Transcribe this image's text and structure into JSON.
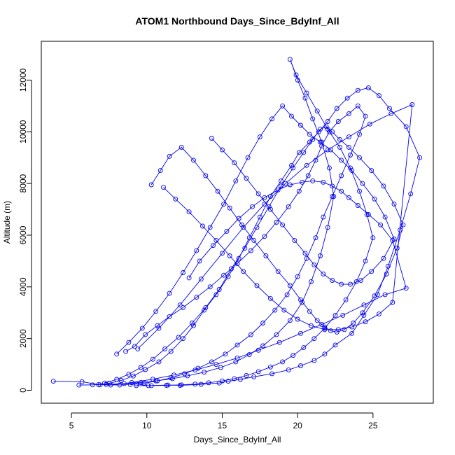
{
  "chart_data": {
    "type": "line",
    "title": "ATOM1 Northbound Days_Since_BdyInf_All",
    "xlabel": "Days_Since_BdyInf_All",
    "ylabel": "Altitude (m)",
    "xlim": [
      3.0,
      29.0
    ],
    "ylim": [
      -500,
      13500
    ],
    "x_ticks": [
      5,
      10,
      15,
      20,
      25
    ],
    "y_ticks": [
      0,
      2000,
      4000,
      6000,
      8000,
      10000,
      12000
    ],
    "grid": false,
    "legend": "none",
    "colors": {
      "series": "#0000ee",
      "axis": "#000000",
      "background": "#ffffff"
    },
    "marker": "open-circle",
    "series": [
      {
        "x": [
          3.8,
          5.7,
          6.8,
          8.2,
          9.3,
          10.1,
          11.4,
          12.2,
          13.6,
          14.8,
          15.4,
          16.2,
          17.1,
          18.3,
          19.4,
          20.2,
          21.1,
          21.8,
          22.5,
          23.6,
          24.4,
          25.3,
          26.0,
          26.8,
          27.5,
          28.1,
          27.2,
          26.1,
          25.4,
          24.7,
          24.0,
          23.3,
          22.6,
          22.0,
          21.4,
          20.8,
          20.1,
          19.6,
          18.9,
          18.2,
          17.5,
          16.8,
          16.1,
          15.4,
          14.6,
          13.8,
          13.1,
          12.4,
          11.6,
          10.8,
          9.9,
          9.1,
          8.3,
          7.5,
          6.9
        ],
        "y": [
          350,
          330,
          220,
          200,
          250,
          180,
          200,
          190,
          230,
          280,
          350,
          420,
          520,
          640,
          790,
          950,
          1150,
          1400,
          1750,
          2200,
          2900,
          3700,
          4800,
          6200,
          7600,
          9000,
          10200,
          10900,
          11400,
          11700,
          11600,
          11300,
          10900,
          10400,
          10000,
          9600,
          9200,
          8700,
          8100,
          7500,
          6700,
          5900,
          5100,
          4400,
          3700,
          3100,
          2500,
          2000,
          1500,
          1100,
          800,
          550,
          380,
          270,
          210
        ]
      },
      {
        "x": [
          5.5,
          6.4,
          7.3,
          8.5,
          9.6,
          10.6,
          11.7,
          12.7,
          13.8,
          14.9,
          15.9,
          16.8,
          17.7,
          18.6,
          19.5,
          20.3,
          20.9,
          21.5,
          22.0,
          22.4,
          22.1,
          21.6,
          21.0,
          20.5,
          20.0,
          19.5,
          19.9,
          20.6,
          21.3,
          22.0,
          22.8,
          23.5,
          24.1,
          24.6,
          25.0,
          24.5,
          23.9,
          23.2,
          22.5,
          21.8,
          21.1,
          20.4,
          19.7,
          19.0,
          18.2,
          17.4,
          16.6,
          15.8,
          15.0,
          14.1,
          13.2,
          12.3,
          11.3,
          10.3,
          9.3
        ],
        "y": [
          200,
          210,
          230,
          260,
          300,
          360,
          450,
          560,
          700,
          880,
          1100,
          1380,
          1720,
          2150,
          2700,
          3400,
          4200,
          5200,
          6300,
          7500,
          8600,
          9600,
          10500,
          11300,
          12000,
          12800,
          12200,
          11500,
          10800,
          10100,
          9400,
          8600,
          7700,
          6800,
          5900,
          5000,
          4200,
          3500,
          2900,
          2400,
          2000,
          1650,
          1350,
          1100,
          900,
          720,
          570,
          450,
          360,
          290,
          240,
          210,
          190,
          180,
          180
        ]
      },
      {
        "x": [
          10.3,
          10.9,
          11.5,
          12.3,
          13.1,
          13.9,
          14.7,
          15.5,
          16.3,
          17.1,
          17.9,
          18.7,
          19.5,
          20.2,
          20.8,
          21.3,
          21.8,
          22.2,
          22.6,
          23.1,
          23.7,
          24.3,
          25.1,
          25.9,
          26.6,
          27.0,
          26.4,
          25.7,
          24.9,
          24.1,
          23.4,
          22.8,
          22.3,
          21.9,
          21.5,
          21.0,
          20.4,
          19.7,
          18.9,
          18.1,
          17.3,
          16.5,
          15.6,
          14.8,
          13.9,
          13.0,
          12.1,
          11.2,
          10.4,
          9.6,
          8.8,
          8.0,
          7.2
        ],
        "y": [
          7950,
          8500,
          9050,
          9400,
          8900,
          8300,
          7700,
          7050,
          6400,
          5800,
          5200,
          4600,
          4050,
          3500,
          3050,
          2700,
          2450,
          2300,
          2250,
          2350,
          2600,
          3000,
          3650,
          4500,
          5500,
          6400,
          7200,
          7900,
          8500,
          9000,
          9400,
          9700,
          10000,
          10200,
          10100,
          9700,
          9200,
          8600,
          7900,
          7100,
          6300,
          5500,
          4700,
          3900,
          3200,
          2600,
          2050,
          1600,
          1200,
          880,
          620,
          420,
          280
        ]
      },
      {
        "x": [
          8.6,
          9.2,
          9.9,
          10.7,
          11.5,
          12.4,
          13.3,
          14.2,
          15.1,
          16.0,
          16.9,
          17.8,
          18.6,
          19.4,
          20.1,
          20.7,
          21.2,
          21.6,
          22.1,
          22.7,
          23.4,
          24.0,
          24.5,
          24.1,
          23.5,
          22.9,
          22.3,
          21.7,
          21.2,
          20.6,
          20.0,
          19.3,
          18.5,
          17.7,
          16.9,
          16.0,
          15.2,
          14.3,
          13.4,
          12.5,
          11.6,
          10.7,
          9.8,
          8.9
        ],
        "y": [
          1500,
          1700,
          2150,
          2500,
          2850,
          3200,
          3600,
          4000,
          4450,
          4900,
          5400,
          5950,
          6500,
          7100,
          7700,
          8300,
          8900,
          9450,
          10000,
          10400,
          10700,
          11000,
          10600,
          9900,
          9100,
          8300,
          7500,
          6700,
          5900,
          5100,
          4400,
          3700,
          3100,
          2600,
          2150,
          1750,
          1400,
          1100,
          850,
          640,
          480,
          360,
          270,
          220
        ]
      },
      {
        "x": [
          14.3,
          15.0,
          15.8,
          16.6,
          17.4,
          18.2,
          19.0,
          19.8,
          20.5,
          21.1,
          21.7,
          22.3,
          22.9,
          23.5,
          24.2,
          24.9,
          25.7,
          26.4,
          25.8,
          25.1,
          24.3,
          23.6,
          22.9,
          22.2,
          21.5,
          20.8,
          20.2,
          19.6,
          19.0,
          18.3,
          17.5,
          16.7,
          15.9,
          15.1,
          14.2,
          13.3,
          12.4,
          11.5,
          10.6,
          9.7,
          8.8,
          8.0
        ],
        "y": [
          9750,
          9300,
          8800,
          8200,
          7600,
          7000,
          6400,
          5800,
          5300,
          4850,
          4500,
          4250,
          4100,
          4100,
          4250,
          4600,
          5100,
          5850,
          6700,
          7400,
          8000,
          8500,
          8900,
          9300,
          9600,
          9900,
          10250,
          10600,
          11000,
          10500,
          9800,
          9000,
          8100,
          7200,
          6300,
          5400,
          4550,
          3750,
          3050,
          2400,
          1850,
          1400
        ]
      },
      {
        "x": [
          12.8,
          13.5,
          14.4,
          15.3,
          16.1,
          17.0,
          17.8,
          18.7,
          19.5,
          20.3,
          21.0,
          21.7,
          22.3,
          22.9,
          23.4,
          24.0,
          24.7,
          25.5,
          26.3,
          27.2,
          25.8,
          24.4,
          23.0,
          21.6,
          20.2,
          18.8,
          17.4,
          16.0,
          14.6,
          13.2,
          11.8,
          10.4,
          9.0,
          7.6
        ],
        "y": [
          4350,
          5000,
          5600,
          6150,
          6650,
          7100,
          7450,
          7750,
          7950,
          8050,
          8100,
          8050,
          7900,
          7700,
          7450,
          7150,
          6800,
          6400,
          5800,
          3950,
          3700,
          3300,
          2900,
          2550,
          2200,
          1850,
          1550,
          1250,
          1000,
          780,
          590,
          430,
          300,
          200
        ]
      },
      {
        "x": [
          11.1,
          11.9,
          12.8,
          13.7,
          14.6,
          15.5,
          16.4,
          17.3,
          18.2,
          19.1,
          20.0,
          20.9,
          21.8,
          22.7,
          23.6,
          24.5,
          25.4,
          26.3,
          27.6,
          26.2,
          24.8,
          23.4,
          22.0,
          20.6,
          19.2,
          17.8,
          16.4,
          15.0,
          13.6,
          12.2,
          10.8,
          9.4
        ],
        "y": [
          7850,
          7400,
          6900,
          6350,
          5800,
          5200,
          4600,
          4050,
          3550,
          3100,
          2750,
          2500,
          2350,
          2350,
          2450,
          2650,
          2950,
          3400,
          11050,
          10700,
          10300,
          9800,
          9300,
          8700,
          8000,
          7200,
          6300,
          5300,
          4300,
          3300,
          2400,
          1600
        ]
      }
    ]
  }
}
